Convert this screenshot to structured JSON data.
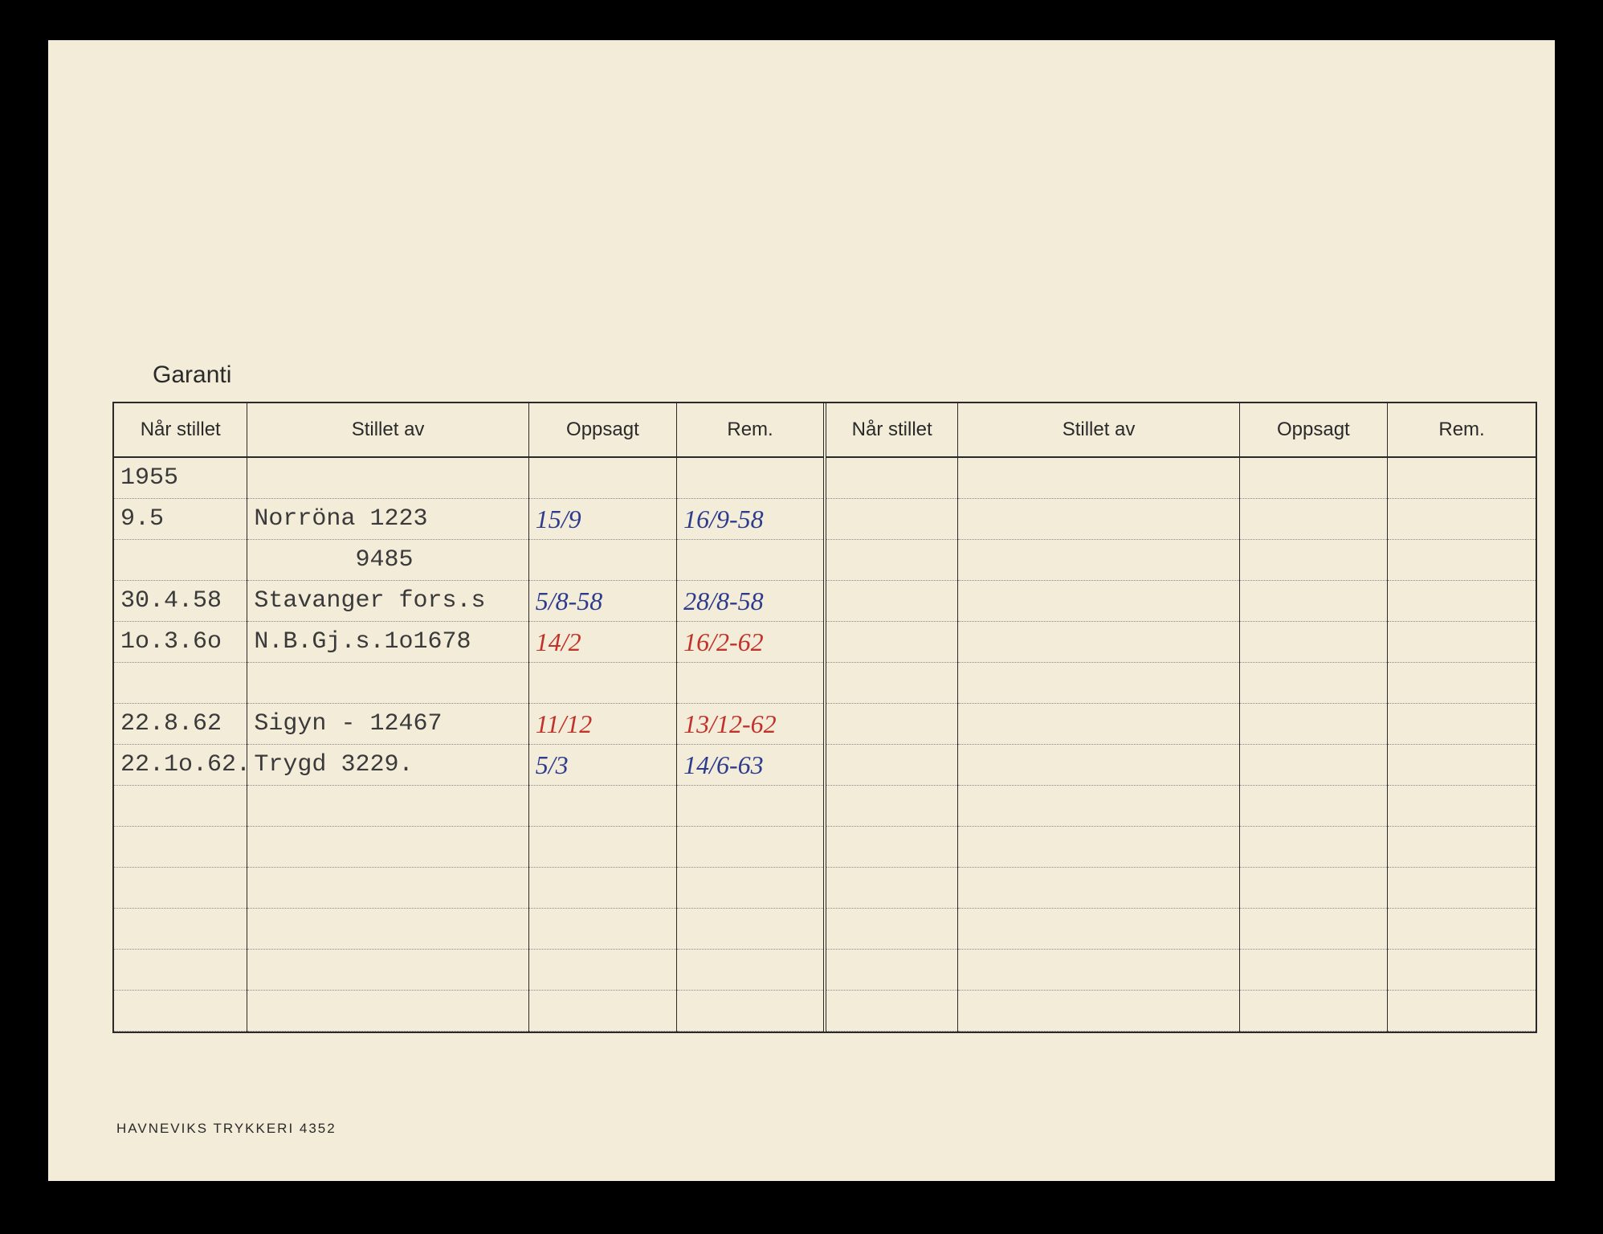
{
  "title": "Garanti",
  "footer": "HAVNEVIKS TRYKKERI  4352",
  "columns": {
    "col_widths_pct": [
      9,
      19,
      10,
      10,
      9,
      19,
      10,
      10
    ],
    "headers": [
      "Når stillet",
      "Stillet av",
      "Oppsagt",
      "Rem.",
      "Når stillet",
      "Stillet av",
      "Oppsagt",
      "Rem."
    ],
    "double_separator_after_col_index": 3
  },
  "rows": [
    {
      "date": "1955",
      "stillet_av": "",
      "oppsagt": "",
      "rem": "",
      "opp_class": "",
      "rem_class": ""
    },
    {
      "date": "9.5",
      "stillet_av": "Norröna 1223",
      "oppsagt": "15/9",
      "rem": "16/9-58",
      "opp_class": "hand-blue",
      "rem_class": "hand-blue"
    },
    {
      "date": "",
      "stillet_av": "       9485",
      "oppsagt": "",
      "rem": "",
      "opp_class": "",
      "rem_class": ""
    },
    {
      "date": "30.4.58",
      "stillet_av": "Stavanger fors.s",
      "oppsagt": "5/8-58",
      "rem": "28/8-58",
      "opp_class": "hand-blue",
      "rem_class": "hand-blue"
    },
    {
      "date": "1o.3.6o",
      "stillet_av": "N.B.Gj.s.1o1678",
      "oppsagt": "14/2",
      "rem": "16/2-62",
      "opp_class": "hand-red",
      "rem_class": "hand-red"
    },
    {
      "date": "",
      "stillet_av": "",
      "oppsagt": "",
      "rem": "",
      "opp_class": "",
      "rem_class": ""
    },
    {
      "date": "22.8.62",
      "stillet_av": "Sigyn - 12467",
      "oppsagt": "11/12",
      "rem": "13/12-62",
      "opp_class": "hand-red",
      "rem_class": "hand-red"
    },
    {
      "date": "22.1o.62.",
      "stillet_av": "Trygd   3229.",
      "oppsagt": "5/3",
      "rem": "14/6-63",
      "opp_class": "hand-blue",
      "rem_class": "hand-blue"
    },
    {
      "date": "",
      "stillet_av": "",
      "oppsagt": "",
      "rem": "",
      "opp_class": "",
      "rem_class": ""
    },
    {
      "date": "",
      "stillet_av": "",
      "oppsagt": "",
      "rem": "",
      "opp_class": "",
      "rem_class": ""
    },
    {
      "date": "",
      "stillet_av": "",
      "oppsagt": "",
      "rem": "",
      "opp_class": "",
      "rem_class": ""
    },
    {
      "date": "",
      "stillet_av": "",
      "oppsagt": "",
      "rem": "",
      "opp_class": "",
      "rem_class": ""
    },
    {
      "date": "",
      "stillet_av": "",
      "oppsagt": "",
      "rem": "",
      "opp_class": "",
      "rem_class": ""
    },
    {
      "date": "",
      "stillet_av": "",
      "oppsagt": "",
      "rem": "",
      "opp_class": "",
      "rem_class": ""
    }
  ]
}
